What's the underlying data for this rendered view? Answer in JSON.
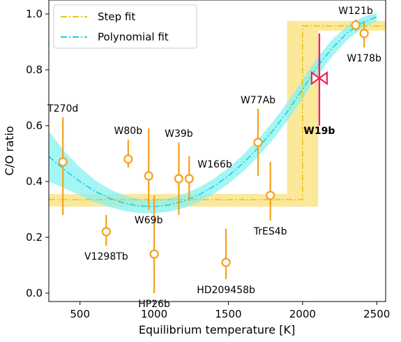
{
  "chart_data": {
    "type": "scatter",
    "xlabel": "Equilibrium temperature [K]",
    "ylabel": "C/O ratio",
    "xlim": [
      290,
      2560
    ],
    "ylim": [
      -0.03,
      1.05
    ],
    "xticks": [
      500,
      1000,
      1500,
      2000,
      2500
    ],
    "yticks": [
      0.0,
      0.2,
      0.4,
      0.6,
      0.8,
      1.0
    ],
    "tick_labels_x": [
      "500",
      "1000",
      "1500",
      "2000",
      "2500"
    ],
    "tick_labels_y": [
      "0.0",
      "0.2",
      "0.4",
      "0.6",
      "0.8",
      "1.0"
    ],
    "legend": {
      "placement": "top-left",
      "entries": [
        {
          "label": "Step fit",
          "color": "#e6c619"
        },
        {
          "label": "Polynomial fit",
          "color": "#21cfd8"
        }
      ]
    },
    "colors": {
      "points": "#f5a01c",
      "highlight": "#ee2255",
      "step_fill": "#fbe48a",
      "poly_fill": "#86f1f1",
      "step_line": "#e6c619",
      "poly_line": "#21cfd8"
    },
    "step_fit": {
      "transition_x": 2000,
      "low_value": 0.335,
      "high_value": 0.957,
      "low_band": [
        0.31,
        0.355
      ],
      "high_band": [
        0.94,
        0.975
      ],
      "transition_band_x": [
        1895,
        2105
      ]
    },
    "polynomial_fit": {
      "x": [
        290,
        400,
        500,
        600,
        700,
        800,
        900,
        1000,
        1100,
        1200,
        1300,
        1400,
        1500,
        1600,
        1700,
        1800,
        1900,
        2000,
        2100,
        2200,
        2300,
        2400,
        2500
      ],
      "y": [
        0.49,
        0.44,
        0.4,
        0.365,
        0.34,
        0.322,
        0.312,
        0.31,
        0.316,
        0.33,
        0.352,
        0.382,
        0.42,
        0.466,
        0.52,
        0.582,
        0.652,
        0.73,
        0.812,
        0.878,
        0.932,
        0.968,
        0.99
      ],
      "band_half_width": [
        0.09,
        0.065,
        0.05,
        0.04,
        0.032,
        0.028,
        0.025,
        0.024,
        0.024,
        0.025,
        0.026,
        0.027,
        0.028,
        0.03,
        0.031,
        0.032,
        0.033,
        0.034,
        0.033,
        0.03,
        0.025,
        0.02,
        0.015
      ]
    },
    "points": [
      {
        "name": "T270d",
        "x": 385,
        "y": 0.47,
        "err_low": 0.19,
        "err_high": 0.16,
        "label_pos": "above"
      },
      {
        "name": "V1298Tb",
        "x": 677,
        "y": 0.22,
        "err_low": 0.05,
        "err_high": 0.06,
        "label_pos": "below"
      },
      {
        "name": "W80b",
        "x": 825,
        "y": 0.48,
        "err_low": 0.03,
        "err_high": 0.07,
        "label_pos": "above"
      },
      {
        "name": "W69b",
        "x": 963,
        "y": 0.42,
        "err_low": 0.12,
        "err_high": 0.17,
        "label_pos": "below"
      },
      {
        "name": "HP26b",
        "x": 1000,
        "y": 0.14,
        "err_low": 0.14,
        "err_high": 0.21,
        "label_pos": "below"
      },
      {
        "name": "W39b",
        "x": 1166,
        "y": 0.41,
        "err_low": 0.13,
        "err_high": 0.13,
        "label_pos": "above"
      },
      {
        "name": "W166b",
        "x": 1236,
        "y": 0.41,
        "err_low": 0.08,
        "err_high": 0.08,
        "label_pos": "right"
      },
      {
        "name": "HD209458b",
        "x": 1484,
        "y": 0.11,
        "err_low": 0.06,
        "err_high": 0.12,
        "label_pos": "below"
      },
      {
        "name": "W77Ab",
        "x": 1700,
        "y": 0.54,
        "err_low": 0.12,
        "err_high": 0.12,
        "label_pos": "above"
      },
      {
        "name": "TrES4b",
        "x": 1783,
        "y": 0.35,
        "err_low": 0.09,
        "err_high": 0.12,
        "label_pos": "below"
      },
      {
        "name": "W121b",
        "x": 2358,
        "y": 0.96,
        "err_low": 0.02,
        "err_high": 0.02,
        "label_pos": "above"
      },
      {
        "name": "W178b",
        "x": 2415,
        "y": 0.93,
        "err_low": 0.05,
        "err_high": 0.04,
        "label_pos": "below"
      }
    ],
    "highlight_point": {
      "name": "W19b",
      "x": 2113,
      "y": 0.77,
      "err_low": 0.17,
      "err_high": 0.16,
      "label_pos": "below"
    }
  }
}
